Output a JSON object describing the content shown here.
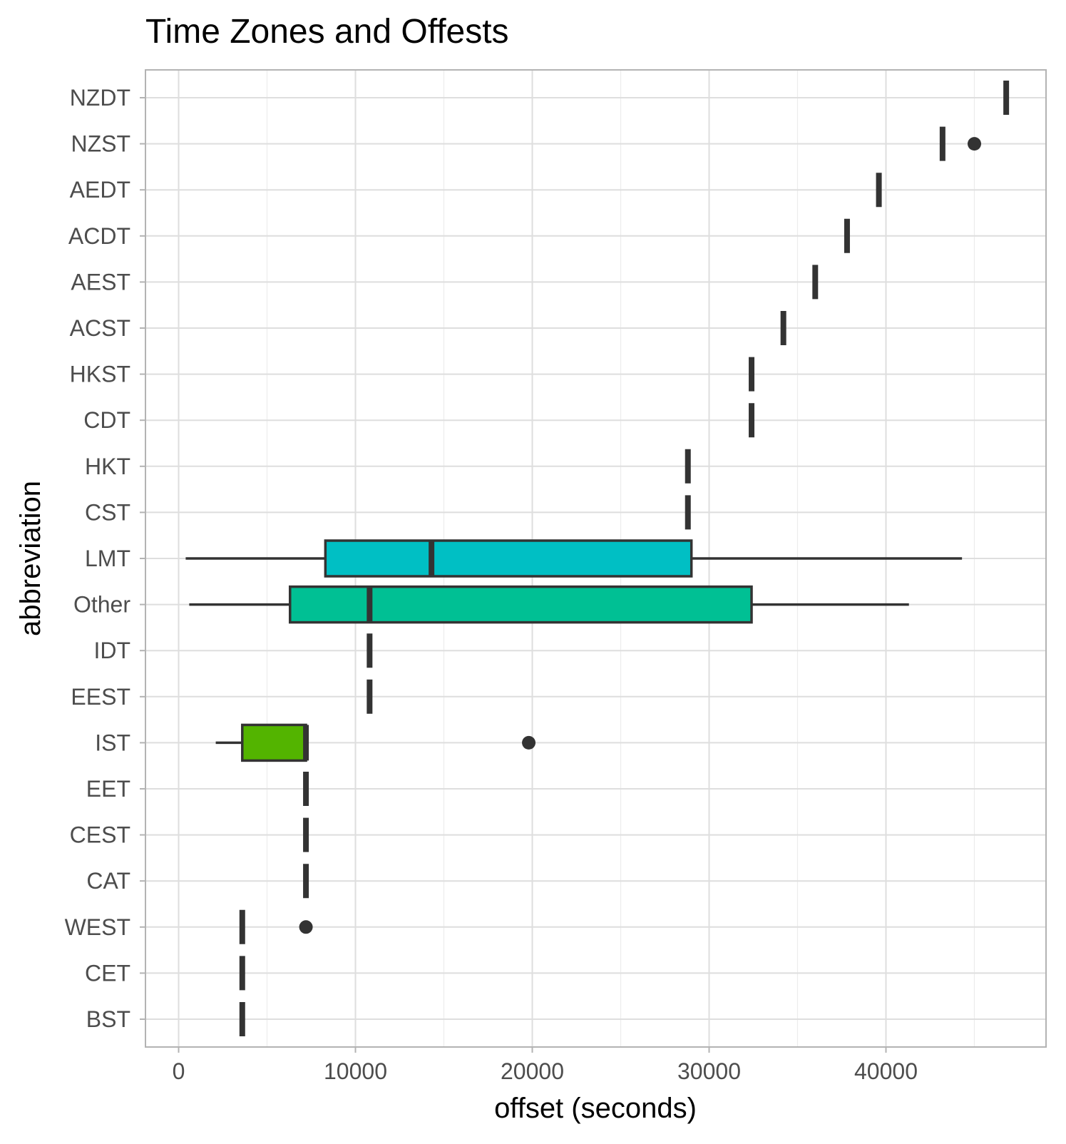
{
  "chart_data": {
    "type": "boxplot",
    "title": "Time Zones and Offests",
    "xlabel": "offset (seconds)",
    "ylabel": "abbreviation",
    "xlim": [
      -2000,
      49000
    ],
    "x_ticks": [
      0,
      10000,
      20000,
      30000,
      40000
    ],
    "grid": true,
    "legend": "none",
    "categories": [
      "BST",
      "CET",
      "WEST",
      "CAT",
      "CEST",
      "EET",
      "IST",
      "EEST",
      "IDT",
      "Other",
      "LMT",
      "CST",
      "HKT",
      "CDT",
      "HKST",
      "ACST",
      "AEST",
      "ACDT",
      "AEDT",
      "NZST",
      "NZDT"
    ],
    "boxes": [
      {
        "label": "BST",
        "min": 3600,
        "q1": 3600,
        "median": 3600,
        "q3": 3600,
        "max": 3600,
        "outliers": []
      },
      {
        "label": "CET",
        "min": 3600,
        "q1": 3600,
        "median": 3600,
        "q3": 3600,
        "max": 3600,
        "outliers": []
      },
      {
        "label": "WEST",
        "min": 3600,
        "q1": 3600,
        "median": 3600,
        "q3": 3600,
        "max": 3600,
        "outliers": [
          7200
        ]
      },
      {
        "label": "CAT",
        "min": 7200,
        "q1": 7200,
        "median": 7200,
        "q3": 7200,
        "max": 7200,
        "outliers": []
      },
      {
        "label": "CEST",
        "min": 7200,
        "q1": 7200,
        "median": 7200,
        "q3": 7200,
        "max": 7200,
        "outliers": []
      },
      {
        "label": "EET",
        "min": 7200,
        "q1": 7200,
        "median": 7200,
        "q3": 7200,
        "max": 7200,
        "outliers": []
      },
      {
        "label": "IST",
        "min": 2100,
        "q1": 3600,
        "median": 7200,
        "q3": 7200,
        "max": 7200,
        "outliers": [
          19800
        ],
        "fill": "#53b400"
      },
      {
        "label": "EEST",
        "min": 10800,
        "q1": 10800,
        "median": 10800,
        "q3": 10800,
        "max": 10800,
        "outliers": []
      },
      {
        "label": "IDT",
        "min": 10800,
        "q1": 10800,
        "median": 10800,
        "q3": 10800,
        "max": 10800,
        "outliers": []
      },
      {
        "label": "Other",
        "min": 600,
        "q1": 6300,
        "median": 10800,
        "q3": 32400,
        "max": 41300,
        "outliers": [],
        "fill": "#00c094"
      },
      {
        "label": "LMT",
        "min": 400,
        "q1": 8300,
        "median": 14300,
        "q3": 29000,
        "max": 44300,
        "outliers": [],
        "fill": "#00bfc4"
      },
      {
        "label": "CST",
        "min": 28800,
        "q1": 28800,
        "median": 28800,
        "q3": 28800,
        "max": 28800,
        "outliers": []
      },
      {
        "label": "HKT",
        "min": 28800,
        "q1": 28800,
        "median": 28800,
        "q3": 28800,
        "max": 28800,
        "outliers": []
      },
      {
        "label": "CDT",
        "min": 32400,
        "q1": 32400,
        "median": 32400,
        "q3": 32400,
        "max": 32400,
        "outliers": []
      },
      {
        "label": "HKST",
        "min": 32400,
        "q1": 32400,
        "median": 32400,
        "q3": 32400,
        "max": 32400,
        "outliers": []
      },
      {
        "label": "ACST",
        "min": 34200,
        "q1": 34200,
        "median": 34200,
        "q3": 34200,
        "max": 34200,
        "outliers": []
      },
      {
        "label": "AEST",
        "min": 36000,
        "q1": 36000,
        "median": 36000,
        "q3": 36000,
        "max": 36000,
        "outliers": []
      },
      {
        "label": "ACDT",
        "min": 37800,
        "q1": 37800,
        "median": 37800,
        "q3": 37800,
        "max": 37800,
        "outliers": []
      },
      {
        "label": "AEDT",
        "min": 39600,
        "q1": 39600,
        "median": 39600,
        "q3": 39600,
        "max": 39600,
        "outliers": []
      },
      {
        "label": "NZST",
        "min": 43200,
        "q1": 43200,
        "median": 43200,
        "q3": 43200,
        "max": 43200,
        "outliers": [
          45000
        ]
      },
      {
        "label": "NZDT",
        "min": 46800,
        "q1": 46800,
        "median": 46800,
        "q3": 46800,
        "max": 46800,
        "outliers": []
      }
    ],
    "colors": {
      "box_line": "#333333",
      "panel_border": "#b3b3b3",
      "grid": "#dedede"
    }
  }
}
